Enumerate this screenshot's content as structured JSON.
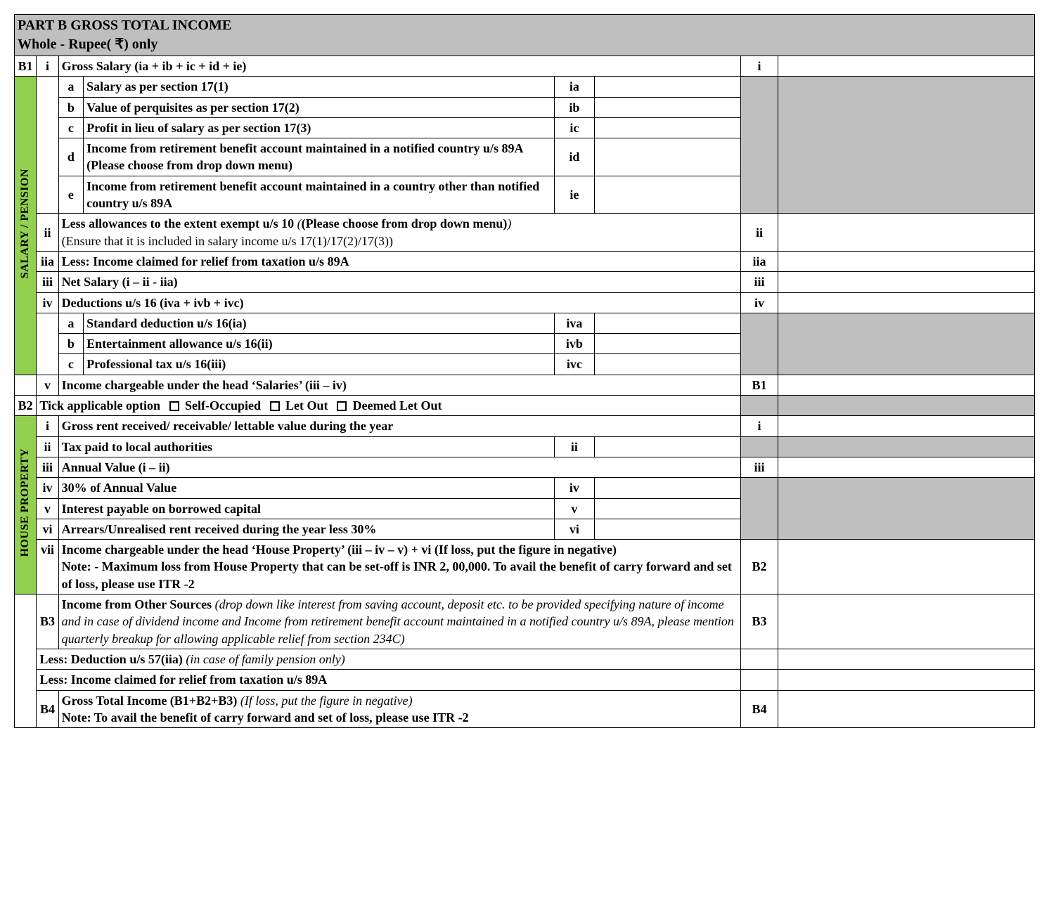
{
  "colors": {
    "header_bg": "#bfbfbf",
    "grey_fill": "#bfbfbf",
    "green_strip": "#92d050",
    "border": "#000000",
    "text": "#000000"
  },
  "typography": {
    "family": "Times New Roman",
    "base_size_pt": 14,
    "header_size_pt": 15
  },
  "header": {
    "line1": "PART B   GROSS TOTAL INCOME",
    "line2_prefix": "Whole - Rupee( ",
    "line2_symbol": "₹",
    "line2_suffix": ") only"
  },
  "salary_strip": "SALARY / PENSION",
  "house_strip": "HOUSE PROPERTY",
  "B1": {
    "code": "B1",
    "i": {
      "num": "i",
      "label": "Gross Salary (ia + ib + ic + id + ie)",
      "ref": "i",
      "value": ""
    },
    "ia": {
      "num": "a",
      "label": "Salary as per section 17(1)",
      "ref": "ia",
      "value": ""
    },
    "ib": {
      "num": "b",
      "label": "Value of perquisites as per section 17(2)",
      "ref": "ib",
      "value": ""
    },
    "ic": {
      "num": "c",
      "label": "Profit in lieu of salary as per section 17(3)",
      "ref": "ic",
      "value": ""
    },
    "id": {
      "num": "d",
      "label": "Income from retirement benefit account maintained in a notified country u/s 89A (Please choose from drop down menu)",
      "ref": "id",
      "value": ""
    },
    "ie": {
      "num": "e",
      "label": "Income from retirement benefit account maintained in a country other than notified country u/s 89A",
      "ref": "ie",
      "value": ""
    },
    "ii": {
      "num": "ii",
      "label_bold": "Less allowances to the extent exempt u/s 10 ",
      "label_ital": "(",
      "label_bold2": "(Please choose from drop down menu)",
      "label_ital2": ")",
      "label_next": "(Ensure that it is included in salary income u/s 17(1)/17(2)/17(3))",
      "ref": "ii",
      "value": ""
    },
    "iia": {
      "num": "iia",
      "label": "Less: Income claimed for relief from taxation u/s 89A",
      "ref": "iia",
      "value": ""
    },
    "iii": {
      "num": "iii",
      "label": "Net Salary (i – ii - iia)",
      "ref": "iii",
      "value": ""
    },
    "iv": {
      "num": "iv",
      "label": "Deductions u/s 16 (iva + ivb + ivc)",
      "ref": "iv",
      "value": ""
    },
    "iva": {
      "num": "a",
      "label": "Standard deduction u/s 16(ia)",
      "ref": "iva",
      "value": ""
    },
    "ivb": {
      "num": "b",
      "label": "Entertainment allowance u/s 16(ii)",
      "ref": "ivb",
      "value": ""
    },
    "ivc": {
      "num": "c",
      "label": "Professional tax u/s 16(iii)",
      "ref": "ivc",
      "value": ""
    },
    "v": {
      "num": "v",
      "label": "Income chargeable under the head ‘Salaries’ (iii – iv)",
      "ref": "B1",
      "value": ""
    }
  },
  "B2": {
    "code": "B2",
    "tick_prefix": "Tick applicable option",
    "opt1": "Self-Occupied",
    "opt2": "Let Out",
    "opt3": "Deemed Let Out",
    "i": {
      "num": "i",
      "label": "Gross rent received/ receivable/ lettable value during the year",
      "ref": "i",
      "value": ""
    },
    "ii": {
      "num": "ii",
      "label": "Tax paid to local authorities",
      "ref": "ii",
      "value": ""
    },
    "iii": {
      "num": "iii",
      "label": "Annual Value (i – ii)",
      "ref": "iii",
      "value": ""
    },
    "iv": {
      "num": "iv",
      "label": "30% of Annual Value",
      "ref": "iv",
      "value": ""
    },
    "v": {
      "num": "v",
      "label": "Interest payable on borrowed capital",
      "ref": "v",
      "value": ""
    },
    "vi": {
      "num": "vi",
      "label": "Arrears/Unrealised rent received during the year less 30%",
      "ref": "vi",
      "value": ""
    },
    "vii": {
      "num": "vii",
      "label_l1": "Income chargeable under the head ‘House Property’ (iii – iv – v) + vi ",
      "label_l1_tail": "(If loss, put the figure in negative)",
      "note": "Note: - Maximum loss from House Property that can be set-off is INR 2, 00,000. To avail the benefit of carry forward and set of loss, please use ITR -2",
      "ref": "B2",
      "value": ""
    }
  },
  "B3": {
    "code": "B3",
    "label_bold": "Income from Other Sources ",
    "label_ital": "(drop down like interest from saving account, deposit etc. to be provided specifying nature of income and in case of dividend income and Income from retirement benefit account maintained in a notified country u/s 89A, please mention quarterly breakup for allowing applicable relief from section 234C)",
    "ref": "B3",
    "value": "",
    "less57_bold": "Less: Deduction u/s 57(iia) ",
    "less57_ital": "(in case of family pension only)",
    "less89A": "Less:  Income claimed for relief from taxation u/s 89A"
  },
  "B4": {
    "code": "B4",
    "label_bold": "Gross Total Income (B1+B2+B3) ",
    "label_ital": "(If loss, put the figure in negative)",
    "note": "Note: To avail the benefit of carry forward and set of loss, please use ITR -2",
    "ref": "B4",
    "value": ""
  }
}
